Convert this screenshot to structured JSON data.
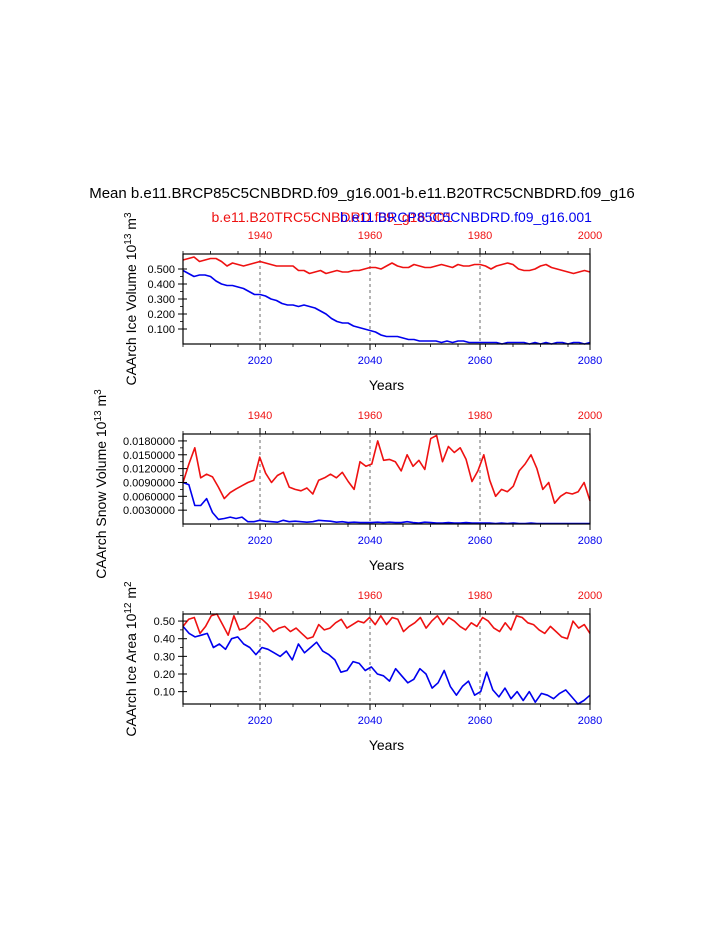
{
  "title": "Mean b.e11.BRCP85C5CNBDRD.f09_g16.001-b.e11.B20TRC5CNBDRD.f09_g16",
  "subtitle_red": "b.e11.B20TRC5CNBDRD.f09_g16.001",
  "subtitle_blue": "b.e11.BRCP85C5CNBDRD.f09_g16.001",
  "colors": {
    "red": "#ee1111",
    "blue": "#0000ee",
    "axis": "#000000",
    "grid": "#444444"
  },
  "chart_data": [
    {
      "type": "line",
      "ylabel": "CAArch Ice Volume 10^13 m^3",
      "xlabel": "Years",
      "ylim": [
        0.0,
        0.6
      ],
      "yticks": [
        {
          "v": 0.1,
          "label": "0.100"
        },
        {
          "v": 0.2,
          "label": "0.200"
        },
        {
          "v": 0.3,
          "label": "0.300"
        },
        {
          "v": 0.4,
          "label": "0.400"
        },
        {
          "v": 0.5,
          "label": "0.500"
        }
      ],
      "xticks_bottom": [
        "2020",
        "2040",
        "2060",
        "2080"
      ],
      "xticks_top": [
        "1940",
        "1960",
        "1980",
        "2000"
      ],
      "xlim_bottom": [
        2006,
        2080
      ],
      "xlim_top": [
        1926,
        2000
      ],
      "series": [
        {
          "name": "b.e11.B20TRC5CNBDRD.f09_g16.001",
          "color": "red",
          "values": [
            0.56,
            0.57,
            0.58,
            0.55,
            0.56,
            0.57,
            0.57,
            0.55,
            0.52,
            0.54,
            0.53,
            0.52,
            0.53,
            0.54,
            0.55,
            0.54,
            0.53,
            0.52,
            0.52,
            0.52,
            0.52,
            0.49,
            0.49,
            0.47,
            0.48,
            0.49,
            0.47,
            0.48,
            0.49,
            0.48,
            0.48,
            0.49,
            0.49,
            0.5,
            0.51,
            0.51,
            0.5,
            0.52,
            0.54,
            0.52,
            0.51,
            0.51,
            0.53,
            0.52,
            0.51,
            0.51,
            0.52,
            0.53,
            0.52,
            0.51,
            0.53,
            0.52,
            0.52,
            0.53,
            0.53,
            0.52,
            0.5,
            0.52,
            0.53,
            0.54,
            0.53,
            0.5,
            0.49,
            0.49,
            0.5,
            0.52,
            0.53,
            0.51,
            0.5,
            0.49,
            0.48,
            0.47,
            0.48,
            0.49,
            0.48
          ]
        },
        {
          "name": "b.e11.BRCP85C5CNBDRD.f09_g16.001",
          "color": "blue",
          "values": [
            0.49,
            0.47,
            0.45,
            0.46,
            0.46,
            0.45,
            0.42,
            0.4,
            0.39,
            0.39,
            0.38,
            0.37,
            0.35,
            0.33,
            0.33,
            0.32,
            0.3,
            0.29,
            0.27,
            0.26,
            0.26,
            0.25,
            0.26,
            0.25,
            0.24,
            0.22,
            0.2,
            0.17,
            0.15,
            0.14,
            0.14,
            0.12,
            0.11,
            0.1,
            0.09,
            0.08,
            0.06,
            0.05,
            0.05,
            0.05,
            0.04,
            0.03,
            0.03,
            0.02,
            0.02,
            0.02,
            0.02,
            0.01,
            0.02,
            0.01,
            0.02,
            0.02,
            0.01,
            0.01,
            0.01,
            0.01,
            0.01,
            0.01,
            0.0,
            0.01,
            0.01,
            0.01,
            0.01,
            0.0,
            0.01,
            0.0,
            0.01,
            0.0,
            0.01,
            0.01,
            0.0,
            0.01,
            0.01,
            0.0,
            0.01
          ]
        }
      ]
    },
    {
      "type": "line",
      "ylabel": "CAArch Snow Volume 10^13 m^3",
      "xlabel": "Years",
      "ylim": [
        0.0,
        0.0195
      ],
      "yticks": [
        {
          "v": 0.003,
          "label": "0.0030000"
        },
        {
          "v": 0.006,
          "label": "0.0060000"
        },
        {
          "v": 0.009,
          "label": "0.0090000"
        },
        {
          "v": 0.012,
          "label": "0.0120000"
        },
        {
          "v": 0.015,
          "label": "0.0150000"
        },
        {
          "v": 0.018,
          "label": "0.0180000"
        }
      ],
      "xticks_bottom": [
        "2020",
        "2040",
        "2060",
        "2080"
      ],
      "xticks_top": [
        "1940",
        "1960",
        "1980",
        "2000"
      ],
      "xlim_bottom": [
        2006,
        2080
      ],
      "xlim_top": [
        1926,
        2000
      ],
      "series": [
        {
          "name": "b.e11.B20TRC5CNBDRD.f09_g16.001",
          "color": "red",
          "values": [
            0.009,
            0.013,
            0.0165,
            0.01,
            0.0108,
            0.0102,
            0.008,
            0.0055,
            0.0068,
            0.0076,
            0.0083,
            0.009,
            0.0095,
            0.0145,
            0.011,
            0.009,
            0.0105,
            0.0112,
            0.008,
            0.0075,
            0.0072,
            0.0078,
            0.0065,
            0.0095,
            0.01,
            0.0108,
            0.01,
            0.0112,
            0.0092,
            0.0075,
            0.0135,
            0.0125,
            0.013,
            0.018,
            0.0138,
            0.014,
            0.0135,
            0.0115,
            0.015,
            0.0125,
            0.0138,
            0.0118,
            0.0185,
            0.0192,
            0.0135,
            0.0168,
            0.0155,
            0.0165,
            0.014,
            0.0092,
            0.0115,
            0.015,
            0.0095,
            0.006,
            0.0075,
            0.007,
            0.0082,
            0.0115,
            0.013,
            0.015,
            0.012,
            0.0075,
            0.009,
            0.0045,
            0.006,
            0.0068,
            0.0065,
            0.007,
            0.009,
            0.005
          ]
        },
        {
          "name": "b.e11.BRCP85C5CNBDRD.f09_g16.001",
          "color": "blue",
          "values": [
            0.009,
            0.0085,
            0.004,
            0.004,
            0.0055,
            0.0025,
            0.001,
            0.0012,
            0.0015,
            0.0012,
            0.0015,
            0.0005,
            0.0005,
            0.0008,
            0.0006,
            0.0005,
            0.0004,
            0.0008,
            0.0005,
            0.0006,
            0.0005,
            0.0004,
            0.0005,
            0.0008,
            0.0007,
            0.0006,
            0.0004,
            0.0005,
            0.0003,
            0.0004,
            0.0003,
            0.0003,
            0.0003,
            0.0004,
            0.0003,
            0.0004,
            0.0003,
            0.0003,
            0.0005,
            0.0003,
            0.0002,
            0.0004,
            0.0003,
            0.0002,
            0.0002,
            0.0003,
            0.0002,
            0.0002,
            0.0003,
            0.0002,
            0.0002,
            0.0002,
            0.0002,
            0.0001,
            0.0002,
            0.0001,
            0.0002,
            0.0001,
            0.0001,
            0.0002,
            0.0001,
            0.0001,
            0.0001,
            0.0001,
            0.0001,
            0.0001,
            0.0001,
            0.0001,
            0.0001,
            0.0001
          ]
        }
      ]
    },
    {
      "type": "line",
      "ylabel": "CAArch Ice Area 10^12 m^2",
      "xlabel": "Years",
      "ylim": [
        0.03,
        0.54
      ],
      "yticks": [
        {
          "v": 0.1,
          "label": "0.10"
        },
        {
          "v": 0.2,
          "label": "0.20"
        },
        {
          "v": 0.3,
          "label": "0.30"
        },
        {
          "v": 0.4,
          "label": "0.40"
        },
        {
          "v": 0.5,
          "label": "0.50"
        }
      ],
      "xticks_bottom": [
        "2020",
        "2040",
        "2060",
        "2080"
      ],
      "xticks_top": [
        "1940",
        "1960",
        "1980",
        "2000"
      ],
      "xlim_bottom": [
        2006,
        2080
      ],
      "xlim_top": [
        1926,
        2000
      ],
      "series": [
        {
          "name": "b.e11.B20TRC5CNBDRD.f09_g16.001",
          "color": "red",
          "values": [
            0.47,
            0.51,
            0.52,
            0.43,
            0.47,
            0.53,
            0.54,
            0.48,
            0.42,
            0.53,
            0.45,
            0.46,
            0.49,
            0.52,
            0.51,
            0.48,
            0.44,
            0.46,
            0.47,
            0.44,
            0.46,
            0.43,
            0.4,
            0.41,
            0.48,
            0.45,
            0.46,
            0.49,
            0.51,
            0.46,
            0.48,
            0.5,
            0.49,
            0.52,
            0.48,
            0.53,
            0.48,
            0.52,
            0.51,
            0.44,
            0.47,
            0.49,
            0.52,
            0.46,
            0.5,
            0.53,
            0.48,
            0.52,
            0.5,
            0.47,
            0.45,
            0.49,
            0.47,
            0.52,
            0.5,
            0.46,
            0.44,
            0.49,
            0.45,
            0.53,
            0.52,
            0.49,
            0.48,
            0.45,
            0.43,
            0.47,
            0.44,
            0.41,
            0.4,
            0.5,
            0.46,
            0.48,
            0.43
          ]
        },
        {
          "name": "b.e11.BRCP85C5CNBDRD.f09_g16.001",
          "color": "blue",
          "values": [
            0.47,
            0.43,
            0.41,
            0.42,
            0.43,
            0.35,
            0.37,
            0.34,
            0.4,
            0.41,
            0.37,
            0.35,
            0.31,
            0.35,
            0.34,
            0.32,
            0.3,
            0.33,
            0.28,
            0.37,
            0.32,
            0.35,
            0.38,
            0.33,
            0.31,
            0.28,
            0.21,
            0.22,
            0.27,
            0.26,
            0.22,
            0.24,
            0.2,
            0.19,
            0.16,
            0.23,
            0.19,
            0.15,
            0.17,
            0.23,
            0.2,
            0.12,
            0.15,
            0.22,
            0.13,
            0.08,
            0.13,
            0.16,
            0.08,
            0.1,
            0.21,
            0.11,
            0.07,
            0.12,
            0.06,
            0.1,
            0.05,
            0.1,
            0.04,
            0.09,
            0.08,
            0.06,
            0.09,
            0.11,
            0.07,
            0.03,
            0.05,
            0.08
          ]
        }
      ]
    }
  ]
}
